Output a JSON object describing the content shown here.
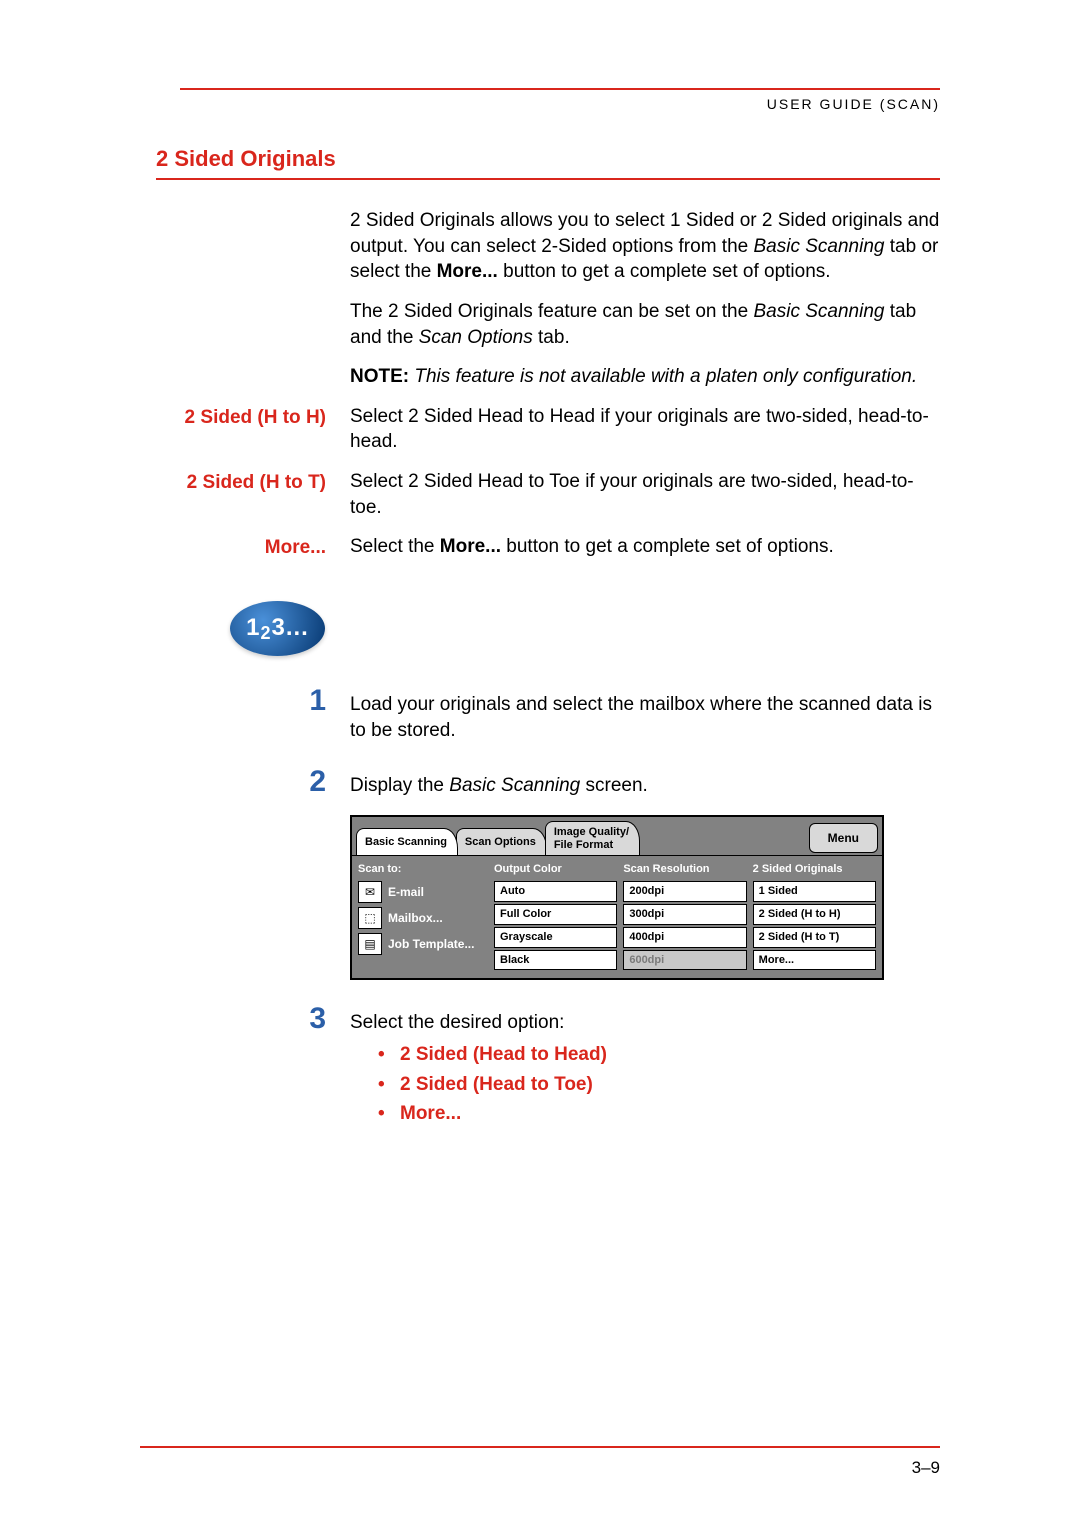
{
  "header": {
    "right_label": "USER GUIDE (SCAN)"
  },
  "section": {
    "title": "2 Sided Originals"
  },
  "intro": {
    "p1_a": "2 Sided Originals allows you to select 1 Sided or 2 Sided originals and output. You can select 2-Sided options from the ",
    "p1_b": "Basic Scanning",
    "p1_c": " tab or select the ",
    "p1_d": "More...",
    "p1_e": " button to get a complete set of options.",
    "p2_a": "The 2 Sided Originals feature can be set on the ",
    "p2_b": "Basic Scanning",
    "p2_c": " tab and the ",
    "p2_d": "Scan Options",
    "p2_e": " tab.",
    "note_label": "NOTE:",
    "note_body": " This feature is not available with a platen only configuration."
  },
  "defs": {
    "hh_term": "2 Sided (H to H)",
    "hh_body": "Select 2 Sided Head to Head if your originals are two-sided, head-to-head.",
    "ht_term": "2 Sided (H to T)",
    "ht_body": "Select 2 Sided Head to Toe if your originals are two-sided, head-to-toe.",
    "more_term": "More...",
    "more_a": "Select the ",
    "more_b": "More...",
    "more_c": " button to get a complete set of options."
  },
  "badge": "1₂3...",
  "steps": {
    "s1_num": "1",
    "s1_body": "Load your originals and select the mailbox where the scanned data is to be stored.",
    "s2_num": "2",
    "s2_a": "Display the ",
    "s2_b": "Basic Scanning",
    "s2_c": " screen.",
    "s3_num": "3",
    "s3_lead": "Select the desired option:",
    "s3_opts": [
      "2 Sided (Head to Head)",
      "2 Sided (Head to Toe)",
      "More..."
    ]
  },
  "ui": {
    "tabs": {
      "basic": "Basic Scanning",
      "options": "Scan Options",
      "iq": "Image Quality/\nFile Format"
    },
    "menu": "Menu",
    "scan_to": "Scan to:",
    "left_items": [
      "E-mail",
      "Mailbox...",
      "Job Template..."
    ],
    "left_glyphs": [
      "✉",
      "⬚",
      "▤"
    ],
    "col_output": {
      "head": "Output Color",
      "opts": [
        "Auto",
        "Full Color",
        "Grayscale",
        "Black"
      ]
    },
    "col_res": {
      "head": "Scan Resolution",
      "opts": [
        "200dpi",
        "300dpi",
        "400dpi",
        "600dpi"
      ],
      "disabled_index": 3
    },
    "col_two": {
      "head": "2 Sided Originals",
      "opts": [
        "1 Sided",
        "2 Sided (H to H)",
        "2 Sided (H to T)",
        "More..."
      ]
    }
  },
  "page_number": "3–9",
  "colors": {
    "accent_red": "#d9261c",
    "accent_blue": "#2b5fa8",
    "panel_gray": "#828282"
  }
}
